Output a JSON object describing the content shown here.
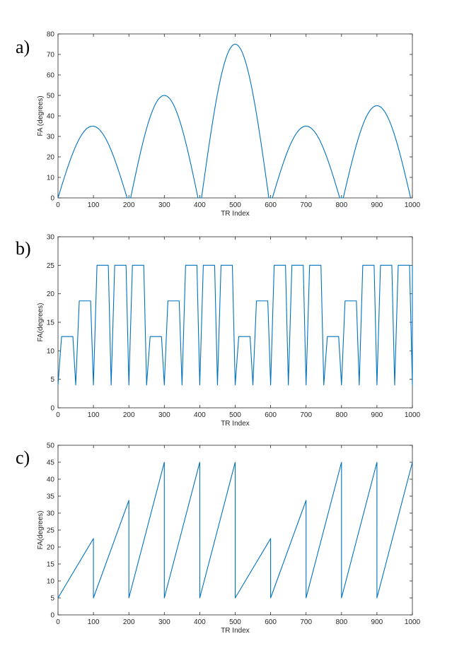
{
  "chart_data": [
    {
      "type": "line",
      "panel_label": "a)",
      "xlabel": "TR Index",
      "ylabel": "FA (degrees)",
      "xlim": [
        0,
        1000
      ],
      "ylim": [
        0,
        80
      ],
      "xticks": [
        0,
        100,
        200,
        300,
        400,
        500,
        600,
        700,
        800,
        900,
        1000
      ],
      "yticks": [
        0,
        10,
        20,
        30,
        40,
        50,
        60,
        70,
        80
      ],
      "grid": false,
      "color": "#0072BD",
      "description_of_shape": "five sinusoidal half-lobes, each spanning about 200 TRs",
      "lobes": [
        {
          "start": 0,
          "end": 195,
          "peak": 35
        },
        {
          "start": 205,
          "end": 395,
          "peak": 50
        },
        {
          "start": 405,
          "end": 595,
          "peak": 75
        },
        {
          "start": 605,
          "end": 795,
          "peak": 35
        },
        {
          "start": 805,
          "end": 995,
          "peak": 45
        }
      ]
    },
    {
      "type": "line",
      "panel_label": "b)",
      "xlabel": "TR Index",
      "ylabel": "FA(degrees)",
      "xlim": [
        0,
        1000
      ],
      "ylim": [
        0,
        30
      ],
      "xticks": [
        0,
        100,
        200,
        300,
        400,
        500,
        600,
        700,
        800,
        900,
        1000
      ],
      "yticks": [
        0,
        5,
        10,
        15,
        20,
        25,
        30
      ],
      "grid": false,
      "color": "#0072BD",
      "segment_length": 50,
      "min_value": 4,
      "plateau_levels": [
        12.5,
        18.75,
        25,
        25,
        25,
        12.5,
        18.75,
        25,
        25,
        25,
        12.5,
        18.75,
        25,
        25,
        25,
        12.5,
        18.75,
        25,
        25,
        25
      ]
    },
    {
      "type": "line",
      "panel_label": "c)",
      "xlabel": "TR Index",
      "ylabel": "FA(degrees)",
      "xlim": [
        0,
        1000
      ],
      "ylim": [
        0,
        50
      ],
      "xticks": [
        0,
        100,
        200,
        300,
        400,
        500,
        600,
        700,
        800,
        900,
        1000
      ],
      "yticks": [
        0,
        5,
        10,
        15,
        20,
        25,
        30,
        35,
        40,
        45,
        50
      ],
      "grid": false,
      "color": "#0072BD",
      "segment_length": 100,
      "ramp_start": 5,
      "ramp_peaks": [
        22.5,
        33.75,
        45,
        45,
        45,
        22.5,
        33.75,
        45,
        45,
        45
      ]
    }
  ]
}
